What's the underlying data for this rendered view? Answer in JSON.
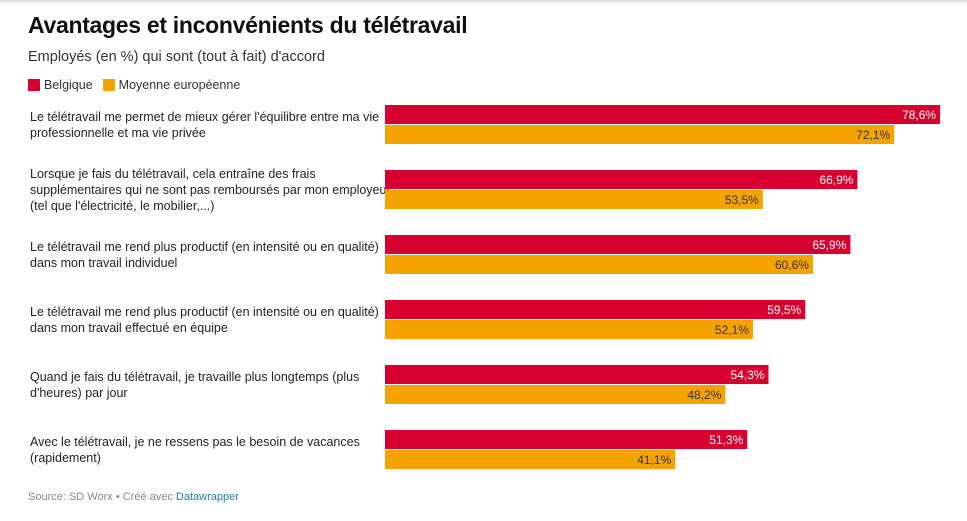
{
  "title": "Avantages et inconvénients du télétravail",
  "subtitle": "Employés (en %) qui sont (tout à fait) d'accord",
  "legend": [
    {
      "label": "Belgique",
      "color": "#d7002f"
    },
    {
      "label": "Moyenne européenne",
      "color": "#f5a300"
    }
  ],
  "source": {
    "text": "Source: SD Worx • Créé avec ",
    "link": "Datawrapper"
  },
  "chart_data": {
    "type": "bar",
    "orientation": "horizontal",
    "title": "Avantages et inconvénients du télétravail",
    "subtitle": "Employés (en %) qui sont (tout à fait) d'accord",
    "xlim": [
      0,
      80
    ],
    "grid": false,
    "legend_position": "top-left",
    "categories": [
      [
        "Le télétravail me permet de mieux gérer l'équilibre entre ma vie",
        "professionnelle et ma vie privée"
      ],
      [
        "Lorsque je fais du télétravail, cela entraîne des frais",
        "supplémentaires qui ne sont pas remboursés par mon employeur",
        "(tel que l'électricité, le mobilier,...)"
      ],
      [
        "Le télétravail me rend plus productif (en intensité ou en qualité)",
        "dans mon travail individuel"
      ],
      [
        "Le télétravail me rend plus productif (en intensité ou en qualité)",
        "dans mon travail effectué en équipe"
      ],
      [
        "Quand je fais du télétravail, je travaille plus longtemps (plus",
        "d'heures) par jour"
      ],
      [
        "Avec le télétravail, je ne ressens pas le besoin de vacances",
        "(rapidement)"
      ]
    ],
    "series": [
      {
        "name": "Belgique",
        "color": "#d7002f",
        "values": [
          78.6,
          66.9,
          65.9,
          59.5,
          54.3,
          51.3
        ],
        "labels": [
          "78,6%",
          "66,9%",
          "65,9%",
          "59,5%",
          "54,3%",
          "51,3%"
        ]
      },
      {
        "name": "Moyenne européenne",
        "color": "#f5a300",
        "values": [
          72.1,
          53.5,
          60.6,
          52.1,
          48.2,
          41.1
        ],
        "labels": [
          "72,1%",
          "53,5%",
          "60,6%",
          "52,1%",
          "48,2%",
          "41,1%"
        ]
      }
    ]
  }
}
